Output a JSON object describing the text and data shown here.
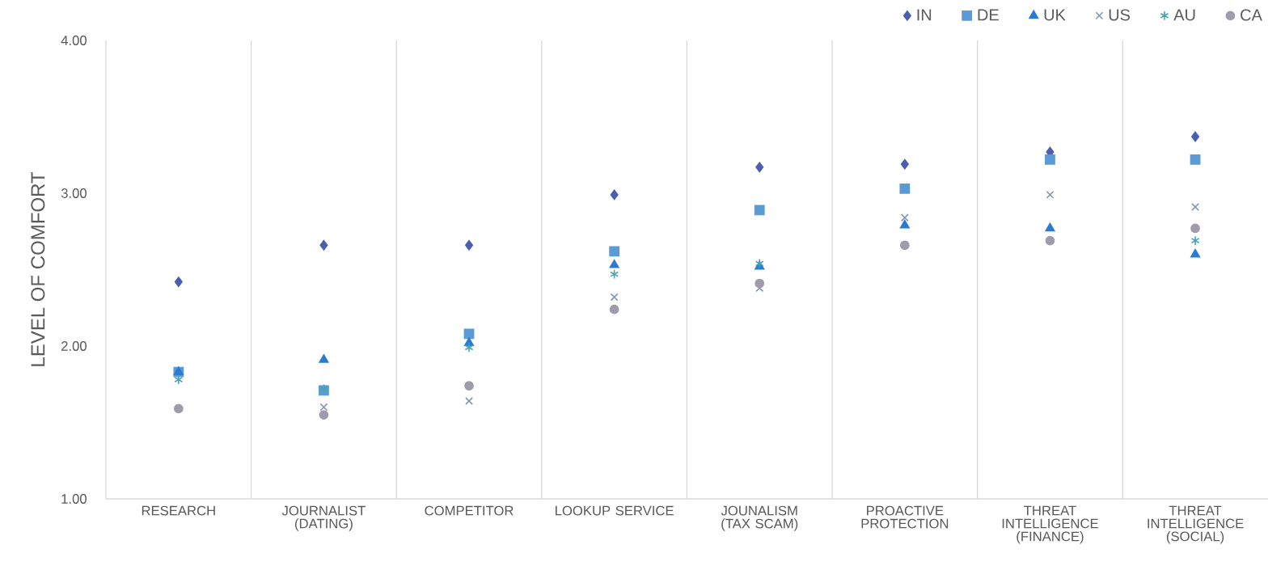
{
  "chart_data": {
    "type": "scatter",
    "ylabel": "LEVEL OF COMFORT",
    "categories": [
      "RESEARCH",
      "JOURNALIST (DATING)",
      "COMPETITOR",
      "LOOKUP SERVICE",
      "JOUNALISM (TAX SCAM)",
      "PROACTIVE PROTECTION",
      "THREAT INTELLIGENCE (FINANCE)",
      "THREAT INTELLIGENCE (SOCIAL)"
    ],
    "series": [
      {
        "name": "IN",
        "color": "#4a5fb0",
        "marker": "diamond",
        "values": [
          2.42,
          2.66,
          2.66,
          2.99,
          3.17,
          3.19,
          3.27,
          3.37
        ]
      },
      {
        "name": "DE",
        "color": "#5b9bd5",
        "marker": "square",
        "values": [
          1.83,
          1.71,
          2.08,
          2.62,
          2.89,
          3.03,
          3.22,
          3.22
        ]
      },
      {
        "name": "UK",
        "color": "#2a7bd4",
        "marker": "triangle",
        "values": [
          1.83,
          1.91,
          2.02,
          2.53,
          2.52,
          2.79,
          2.77,
          2.6
        ]
      },
      {
        "name": "US",
        "color": "#8497b0",
        "marker": "cross",
        "values": [
          null,
          1.6,
          1.64,
          2.32,
          2.38,
          2.84,
          2.99,
          2.91
        ]
      },
      {
        "name": "AU",
        "color": "#4aa3b5",
        "values": [
          1.78,
          1.72,
          1.99,
          2.47,
          2.54,
          null,
          null,
          2.69
        ]
      },
      {
        "name": "CA",
        "color": "#a09aad",
        "marker": "circle",
        "values": [
          1.59,
          1.55,
          1.74,
          2.24,
          2.41,
          2.66,
          2.69,
          2.77
        ]
      }
    ],
    "ylim": [
      1,
      4
    ],
    "yticks": [
      {
        "value": 1,
        "label": "1.00"
      },
      {
        "value": 2,
        "label": "2.00"
      },
      {
        "value": 3,
        "label": "3.00"
      },
      {
        "value": 4,
        "label": "4.00"
      }
    ],
    "grid": "x",
    "legend": "top right"
  }
}
